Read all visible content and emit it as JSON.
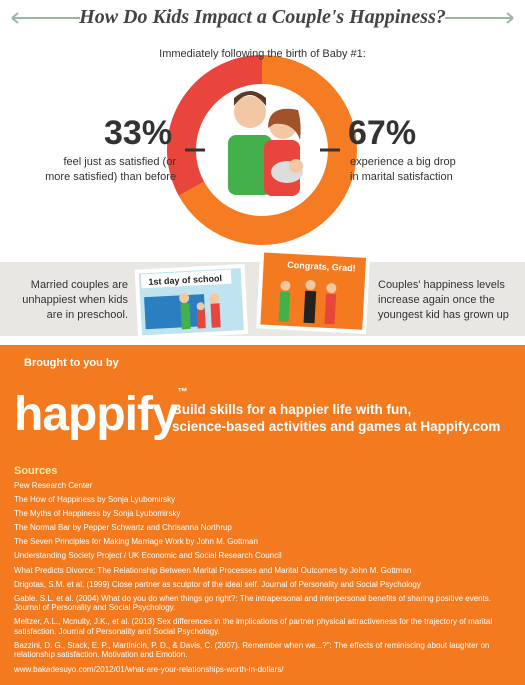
{
  "header": {
    "title": "How Do Kids Impact a Couple's Happiness?",
    "subtitle": "Immediately following the birth of Baby #1:"
  },
  "donut": {
    "values": [
      33,
      67
    ],
    "value_labels": [
      "33%",
      "67%"
    ],
    "colors": [
      "#e8453c",
      "#f57c22"
    ],
    "captions": [
      [
        "feel just as satisfied (or",
        "more satisfied) than before"
      ],
      [
        "experience a big drop",
        "in marital satisfaction"
      ]
    ]
  },
  "band": {
    "left_text": [
      "Married couples are",
      "unhappiest when kids",
      "are in preschool."
    ],
    "right_text": [
      "Couples' happiness levels",
      "increase again once the",
      "youngest kid has grown up"
    ],
    "sign_left": "1st day of school",
    "sign_right": "Congrats, Grad!"
  },
  "footer": {
    "brought": "Brought to you by",
    "brand": "happify",
    "tm": "™",
    "tagline": [
      "Build skills for a happier life with fun,",
      "science-based activities and games at Happify.com"
    ]
  },
  "sources": {
    "heading": "Sources",
    "items": [
      "Pew Research Center",
      "The How of Happiness by Sonja Lyubomirsky",
      "The Myths of Happiness by Sonja Lyubomirsky",
      "The Normal Bar by Pepper Schwartz and Chrisanna Northrup",
      "The Seven Principles for Making Marriage Work by John M. Gottman",
      "Understanding Society Project / UK Economic and Social Research Council",
      "What Predicts Divorce: The Relationship Between Marital Processes and Marital Outcomes by John M. Gottman",
      "Drigotas, S.M. et al. (1999) Close partner as sculptor of the ideal self. Journal of Personality and Social Psychology",
      "Gable. S.L. et al. (2004) What do you do when things go right?: The intrapersonal and interpersonal benefits of sharing positive events. Journal of Personality and Social Psychology.",
      "Meltzer, A.L., Mcnulty, J.K., et al. (2013) Sex differences in the implications of partner physical attractiveness for the trajectory of marital satisfaction. Journal of Personality and Social Psychology.",
      "Bazzini, D. G., Stack, E. P., Martinicin, P. D., & Davis, C. (2007). Remember when we...?\": The effects of reminiscing about laughter on relationship satisfaction. Motivation and Emotion.",
      "www.bakadesuyo.com/2012/01/what-are-your-relationships-worth-in-dollars/"
    ]
  }
}
